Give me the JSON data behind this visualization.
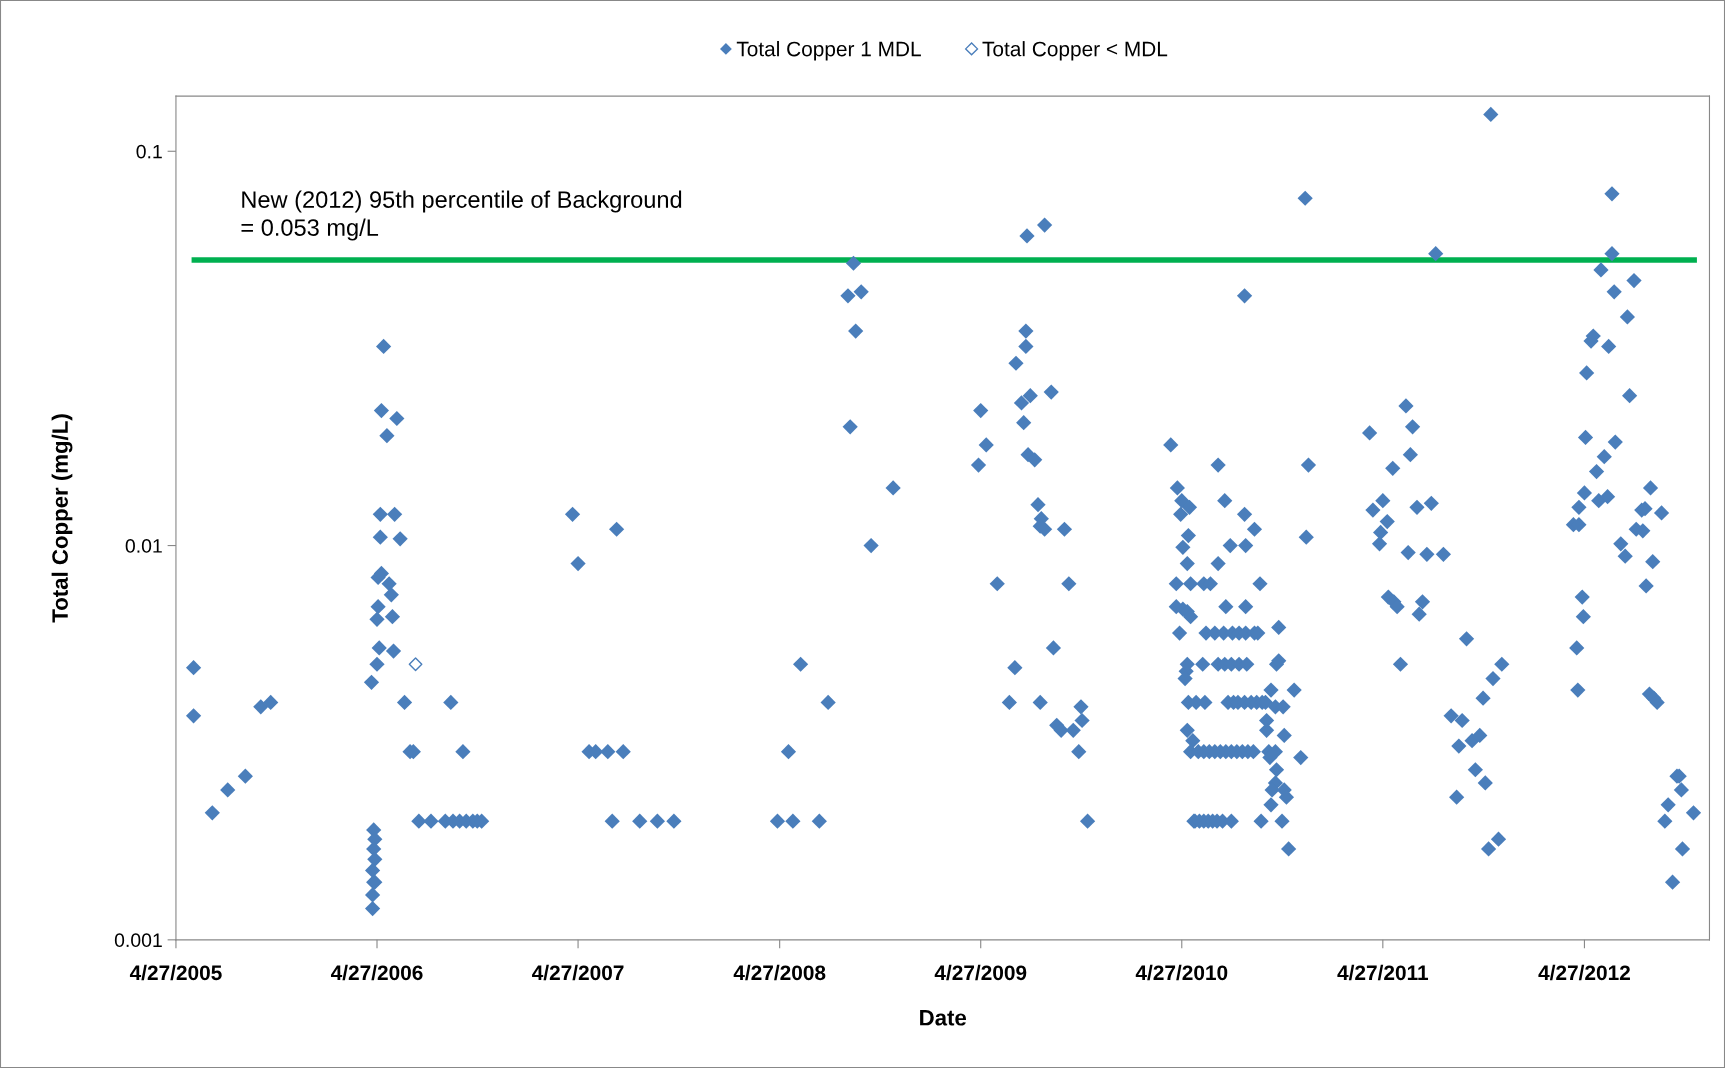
{
  "chart_data": {
    "type": "scatter",
    "xlabel": "Date",
    "ylabel": "Total Copper (mg/L)",
    "legend": "top",
    "marker": "diamond",
    "grid": false,
    "log": "y",
    "xlim": [
      "2005-04-27",
      "2012-12-10"
    ],
    "xticks": [
      {
        "value": "2005-04-27",
        "label": "4/27/2005"
      },
      {
        "value": "2006-04-27",
        "label": "4/27/2006"
      },
      {
        "value": "2007-04-27",
        "label": "4/27/2007"
      },
      {
        "value": "2008-04-27",
        "label": "4/27/2008"
      },
      {
        "value": "2009-04-27",
        "label": "4/27/2009"
      },
      {
        "value": "2010-04-27",
        "label": "4/27/2010"
      },
      {
        "value": "2011-04-27",
        "label": "4/27/2011"
      },
      {
        "value": "2012-04-27",
        "label": "4/27/2012"
      }
    ],
    "ylim": [
      0.001,
      0.138
    ],
    "yticks": [
      0.001,
      0.01,
      0.1
    ],
    "ref_lines": [
      {
        "axis": "y",
        "value": 0.053,
        "label": "New (2012) 95th percentile of Background\n= 0.053 mg/L",
        "color": "#00b050",
        "line_style": "solid"
      }
    ],
    "series": [
      {
        "name": "Total Copper 1 MDL",
        "color": "#4a7ebb",
        "x": [
          "2005-05-29",
          "2005-05-29",
          "2005-07-02",
          "2005-07-30",
          "2005-08-31",
          "2005-09-28",
          "2005-10-16",
          "2006-05-09",
          "2006-05-05",
          "2006-06-02",
          "2006-05-15",
          "2006-05-03",
          "2006-05-29",
          "2006-05-03",
          "2006-06-08",
          "2006-04-29",
          "2006-05-05",
          "2006-05-19",
          "2006-05-23",
          "2006-04-29",
          "2006-04-27",
          "2006-05-25",
          "2006-05-01",
          "2006-05-27",
          "2006-04-27",
          "2006-04-17",
          "2006-04-21",
          "2006-04-23",
          "2006-04-21",
          "2006-04-23",
          "2006-04-19",
          "2006-04-21",
          "2006-04-23",
          "2006-04-19",
          "2006-04-19",
          "2006-06-16",
          "2006-06-26",
          "2006-07-02",
          "2006-09-08",
          "2006-09-30",
          "2006-07-12",
          "2006-08-03",
          "2006-08-29",
          "2006-09-12",
          "2006-09-24",
          "2006-10-06",
          "2006-10-18",
          "2006-10-26",
          "2006-11-03",
          "2007-04-17",
          "2007-04-27",
          "2007-07-06",
          "2007-05-17",
          "2007-05-29",
          "2007-06-20",
          "2007-07-18",
          "2007-06-28",
          "2007-08-17",
          "2007-09-18",
          "2007-10-18",
          "2008-05-13",
          "2008-06-04",
          "2008-07-24",
          "2008-04-23",
          "2008-05-21",
          "2008-07-08",
          "2008-09-08",
          "2008-08-29",
          "2008-09-22",
          "2008-09-12",
          "2008-09-02",
          "2008-11-19",
          "2008-10-10",
          "2009-04-23",
          "2009-04-27",
          "2009-05-07",
          "2009-05-27",
          "2009-06-18",
          "2009-06-28",
          "2009-06-30",
          "2009-07-10",
          "2009-07-14",
          "2009-07-18",
          "2009-07-18",
          "2009-07-20",
          "2009-07-26",
          "2009-07-22",
          "2009-08-03",
          "2009-08-21",
          "2009-09-02",
          "2009-08-09",
          "2009-08-15",
          "2009-08-13",
          "2009-08-21",
          "2009-09-26",
          "2009-09-06",
          "2009-10-04",
          "2009-08-13",
          "2009-09-12",
          "2009-09-20",
          "2009-10-12",
          "2009-10-28",
          "2009-10-26",
          "2009-10-22",
          "2009-11-07",
          "2010-04-07",
          "2010-04-19",
          "2010-04-27",
          "2010-04-25",
          "2010-05-11",
          "2010-05-09",
          "2010-04-29",
          "2010-05-07",
          "2010-04-17",
          "2010-05-13",
          "2010-06-06",
          "2010-06-18",
          "2010-04-17",
          "2010-04-29",
          "2010-05-07",
          "2010-05-13",
          "2010-04-23",
          "2010-05-05",
          "2010-05-03",
          "2010-05-07",
          "2010-05-09",
          "2010-05-23",
          "2010-06-08",
          "2010-05-07",
          "2010-05-17",
          "2010-05-13",
          "2010-05-27",
          "2010-06-06",
          "2010-06-16",
          "2010-06-26",
          "2010-07-06",
          "2010-07-16",
          "2010-07-26",
          "2010-08-05",
          "2010-08-15",
          "2010-08-25",
          "2010-09-04",
          "2010-05-19",
          "2010-05-21",
          "2010-05-29",
          "2010-06-06",
          "2010-06-14",
          "2010-06-22",
          "2010-06-30",
          "2010-07-10",
          "2010-07-26",
          "2010-06-10",
          "2010-06-26",
          "2010-07-12",
          "2010-07-28",
          "2010-08-09",
          "2010-08-21",
          "2010-09-06",
          "2010-09-12",
          "2010-06-04",
          "2010-07-02",
          "2010-07-14",
          "2010-07-26",
          "2010-08-09",
          "2010-08-23",
          "2010-07-20",
          "2010-07-30",
          "2010-08-07",
          "2010-08-19",
          "2010-08-31",
          "2010-09-10",
          "2010-09-20",
          "2010-09-26",
          "2010-07-16",
          "2010-08-21",
          "2010-07-02",
          "2010-07-14",
          "2010-08-19",
          "2010-09-06",
          "2010-07-24",
          "2010-08-21",
          "2010-07-02",
          "2010-09-16",
          "2010-08-19",
          "2010-10-20",
          "2010-10-16",
          "2010-10-20",
          "2010-10-06",
          "2010-11-17",
          "2010-09-28",
          "2010-10-14",
          "2010-10-28",
          "2010-09-28",
          "2010-10-30",
          "2010-10-02",
          "2010-10-14",
          "2010-10-04",
          "2010-10-16",
          "2010-10-14",
          "2010-10-08",
          "2010-10-30",
          "2010-11-03",
          "2010-10-06",
          "2010-10-26",
          "2010-09-18",
          "2010-11-07",
          "2010-11-29",
          "2010-12-07",
          "2010-12-13",
          "2010-12-09",
          "2011-04-03",
          "2011-04-09",
          "2011-04-27",
          "2011-05-05",
          "2011-04-23",
          "2011-04-21",
          "2011-05-15",
          "2011-06-08",
          "2011-06-20",
          "2011-06-16",
          "2011-06-12",
          "2011-06-28",
          "2011-07-24",
          "2011-07-16",
          "2011-08-15",
          "2011-05-07",
          "2011-05-17",
          "2011-05-23",
          "2011-07-08",
          "2011-07-02",
          "2011-05-29",
          "2011-08-01",
          "2011-09-26",
          "2011-08-29",
          "2011-09-18",
          "2011-10-26",
          "2011-11-13",
          "2011-11-29",
          "2011-09-12",
          "2011-10-06",
          "2011-10-20",
          "2011-09-08",
          "2011-10-12",
          "2011-10-30",
          "2011-11-05",
          "2011-11-23",
          "2011-11-09",
          "2012-04-07",
          "2012-04-17",
          "2012-04-17",
          "2012-04-27",
          "2012-04-29",
          "2012-05-01",
          "2012-05-09",
          "2012-05-13",
          "2012-04-23",
          "2012-04-25",
          "2012-04-13",
          "2012-04-15",
          "2012-05-27",
          "2012-06-16",
          "2012-06-16",
          "2012-06-20",
          "2012-06-10",
          "2012-07-14",
          "2012-07-26",
          "2012-07-18",
          "2012-06-22",
          "2012-06-02",
          "2012-05-19",
          "2012-05-23",
          "2012-06-08",
          "2012-07-02",
          "2012-07-10",
          "2012-07-30",
          "2012-08-11",
          "2012-08-09",
          "2012-08-15",
          "2012-08-25",
          "2012-09-14",
          "2012-08-17",
          "2012-08-29",
          "2012-08-23",
          "2012-08-31",
          "2012-09-06",
          "2012-10-12",
          "2012-10-16",
          "2012-10-20",
          "2012-09-26",
          "2012-09-20",
          "2012-11-11",
          "2012-10-22",
          "2012-10-04"
        ],
        "values": [
          0.0049,
          0.0037,
          0.0021,
          0.0024,
          0.0026,
          0.0039,
          0.004,
          0.032,
          0.022,
          0.021,
          0.019,
          0.012,
          0.012,
          0.0105,
          0.0104,
          0.0083,
          0.0085,
          0.008,
          0.0075,
          0.007,
          0.0065,
          0.0066,
          0.0055,
          0.0054,
          0.005,
          0.0045,
          0.0019,
          0.0018,
          0.0017,
          0.0016,
          0.0015,
          0.0014,
          0.0014,
          0.0013,
          0.0012,
          0.004,
          0.003,
          0.003,
          0.004,
          0.003,
          0.002,
          0.002,
          0.002,
          0.002,
          0.002,
          0.002,
          0.002,
          0.002,
          0.002,
          0.012,
          0.009,
          0.011,
          0.003,
          0.003,
          0.003,
          0.003,
          0.002,
          0.002,
          0.002,
          0.002,
          0.003,
          0.005,
          0.004,
          0.002,
          0.002,
          0.002,
          0.052,
          0.043,
          0.044,
          0.035,
          0.02,
          0.014,
          0.01,
          0.016,
          0.022,
          0.018,
          0.008,
          0.004,
          0.0049,
          0.029,
          0.023,
          0.0205,
          0.032,
          0.035,
          0.061,
          0.024,
          0.017,
          0.0165,
          0.065,
          0.0245,
          0.0127,
          0.0117,
          0.0112,
          0.011,
          0.011,
          0.0055,
          0.008,
          0.004,
          0.0035,
          0.0034,
          0.0034,
          0.0036,
          0.0039,
          0.003,
          0.002,
          0.018,
          0.014,
          0.013,
          0.012,
          0.0125,
          0.0106,
          0.0099,
          0.009,
          0.008,
          0.008,
          0.008,
          0.008,
          0.007,
          0.0069,
          0.0068,
          0.0066,
          0.006,
          0.0048,
          0.0046,
          0.005,
          0.004,
          0.004,
          0.004,
          0.0034,
          0.0032,
          0.003,
          0.003,
          0.003,
          0.003,
          0.003,
          0.003,
          0.003,
          0.003,
          0.003,
          0.003,
          0.003,
          0.003,
          0.002,
          0.002,
          0.002,
          0.002,
          0.002,
          0.002,
          0.002,
          0.002,
          0.002,
          0.006,
          0.006,
          0.006,
          0.006,
          0.006,
          0.006,
          0.006,
          0.006,
          0.005,
          0.005,
          0.005,
          0.005,
          0.005,
          0.005,
          0.004,
          0.004,
          0.004,
          0.004,
          0.004,
          0.004,
          0.004,
          0.004,
          0.007,
          0.007,
          0.016,
          0.013,
          0.012,
          0.011,
          0.01,
          0.01,
          0.009,
          0.008,
          0.043,
          0.0062,
          0.005,
          0.0051,
          0.0043,
          0.0043,
          0.0036,
          0.0039,
          0.0039,
          0.0034,
          0.0033,
          0.003,
          0.003,
          0.0029,
          0.0027,
          0.0025,
          0.0024,
          0.0024,
          0.0023,
          0.0022,
          0.002,
          0.002,
          0.0017,
          0.0029,
          0.076,
          0.016,
          0.0105,
          0.0193,
          0.0123,
          0.013,
          0.0115,
          0.0108,
          0.0101,
          0.0157,
          0.0226,
          0.02,
          0.017,
          0.0096,
          0.0125,
          0.0128,
          0.0095,
          0.0095,
          0.0074,
          0.0072,
          0.007,
          0.0072,
          0.0067,
          0.005,
          0.055,
          0.0058,
          0.0037,
          0.0036,
          0.0041,
          0.0046,
          0.005,
          0.0031,
          0.0032,
          0.0033,
          0.0023,
          0.0027,
          0.0025,
          0.0017,
          0.0018,
          0.124,
          0.0113,
          0.0113,
          0.0125,
          0.0136,
          0.0188,
          0.0274,
          0.033,
          0.034,
          0.0074,
          0.0066,
          0.0055,
          0.0043,
          0.05,
          0.078,
          0.055,
          0.044,
          0.032,
          0.038,
          0.047,
          0.024,
          0.0183,
          0.0168,
          0.0154,
          0.013,
          0.0133,
          0.0101,
          0.0094,
          0.011,
          0.0109,
          0.0123,
          0.0124,
          0.014,
          0.0121,
          0.0079,
          0.0091,
          0.0042,
          0.0041,
          0.004,
          0.0026,
          0.0026,
          0.0024,
          0.0022,
          0.002,
          0.0021,
          0.0017,
          0.0014
        ]
      },
      {
        "name": "Total Copper < MDL",
        "color": "#4a7ebb",
        "x": [
          "2006-07-06"
        ],
        "values": [
          0.005
        ]
      }
    ]
  }
}
